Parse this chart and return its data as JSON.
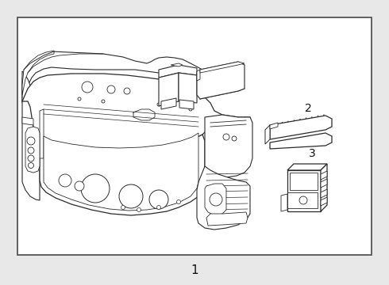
{
  "bg_color": "#e8e8e8",
  "white": "#ffffff",
  "line_color": "#2a2a2a",
  "border_color": "#555555",
  "label_color": "#111111",
  "label_1": "1",
  "label_2": "2",
  "label_3": "3",
  "fig_width": 4.9,
  "fig_height": 3.6,
  "dpi": 100,
  "border": [
    22,
    22,
    446,
    300
  ]
}
